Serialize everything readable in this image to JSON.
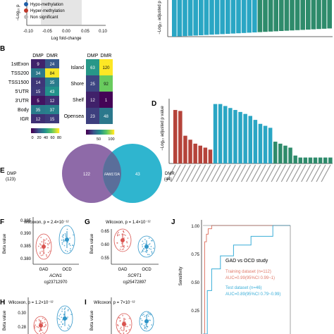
{
  "panel_labels": {
    "b": "B",
    "d": "D",
    "e": "E",
    "f": "F",
    "g": "G",
    "h": "H",
    "i": "I",
    "j": "J"
  },
  "legend_a": {
    "items": [
      {
        "label": "Hypo-methylation",
        "color": "#1f5fa8"
      },
      {
        "label": "Hyper-methylation",
        "color": "#c0392b"
      },
      {
        "label": "Non significant",
        "color": "#bbbbbb"
      }
    ]
  },
  "volcano": {
    "xlabel": "Log fold-change",
    "ylabel": "−Log₁₀ p",
    "xticks": [
      "-0.10",
      "-0.05",
      "0.00",
      "0.05",
      "0.10"
    ]
  },
  "panel_c": {
    "ylabel": "−Log₁₀ adjusted p"
  },
  "heat_b": {
    "columns": [
      "DMP",
      "DMR"
    ],
    "rows": [
      "1stExon",
      "TSS200",
      "TSS1500",
      "5'UTR",
      "3'UTR",
      "Body",
      "IGR"
    ],
    "values": [
      [
        9,
        24
      ],
      [
        34,
        84
      ],
      [
        14,
        35
      ],
      [
        15,
        43
      ],
      [
        5,
        12
      ],
      [
        35,
        37
      ],
      [
        12,
        15
      ]
    ],
    "colorbar_ticks": [
      "0",
      "20",
      "40",
      "60",
      "80"
    ]
  },
  "heat_b2": {
    "columns": [
      "DMP",
      "DMR"
    ],
    "rows": [
      "Island",
      "Shore",
      "Shelf",
      "Opensea"
    ],
    "values": [
      [
        63,
        120
      ],
      [
        25,
        92
      ],
      [
        12,
        1
      ],
      [
        23,
        48
      ]
    ],
    "colorbar_ticks": [
      "50",
      "100"
    ]
  },
  "panel_d": {
    "ylabel": "−Log₁₀ adjusted p value",
    "red_color": "#b5433a",
    "blue_color": "#2aa6c4",
    "green_color": "#2e8b6b"
  },
  "venn": {
    "left_label": "DMP",
    "left_count": "(123)",
    "right_label": "DMR",
    "right_count": "(44)",
    "left_only": "122",
    "shared": "FAM172A",
    "right_only": "43",
    "left_color": "#8e6aa8",
    "right_color": "#2fb5cf"
  },
  "panel_f": {
    "stat": "Wilcoxon, p = 2.4×10⁻¹²",
    "ylabel": "Beta value",
    "yticks": [
      "0.380",
      "0.385",
      "0.390",
      "0.395"
    ],
    "groups": [
      "GAD",
      "OCD"
    ],
    "gene": "ACIN1",
    "probe": "cg23712970"
  },
  "panel_g": {
    "stat": "Wilcoxon, p = 1.4×10⁻¹²",
    "ylabel": "Beta value",
    "yticks": [
      "0.55",
      "0.60",
      "0.65"
    ],
    "groups": [
      "GAD",
      "OCD"
    ],
    "gene": "SCRT1",
    "probe": "cg25472897"
  },
  "panel_h": {
    "stat": "Wilcoxon, p = 1.2×10⁻¹²",
    "ylabel": "Beta value",
    "yticks": [
      "0.28",
      "0.30"
    ]
  },
  "panel_i": {
    "stat": "Wilcoxon, p = 7×10⁻¹²",
    "ylabel": "Beta value"
  },
  "roc": {
    "ylabel": "Sensitivity",
    "yticks": [
      "1.00",
      "0.75",
      "0.50",
      "0.25"
    ],
    "study": "GAD vs OCD study",
    "train_label": "Training dataset (n=112)",
    "train_auc": "AUC=0.99(95%CI 0.99~1)",
    "test_label": "Test dataset (n=46)",
    "test_auc": "AUC=0.89(95%CI 0.79~0.99)",
    "train_color": "#e07a6a",
    "test_color": "#3aaed8"
  },
  "chart_data": [
    {
      "type": "heatmap",
      "title": "",
      "columns": [
        "DMP",
        "DMR"
      ],
      "rows": [
        "1stExon",
        "TSS200",
        "TSS1500",
        "5'UTR",
        "3'UTR",
        "Body",
        "IGR"
      ],
      "values": [
        [
          9,
          24
        ],
        [
          34,
          84
        ],
        [
          14,
          35
        ],
        [
          15,
          43
        ],
        [
          5,
          12
        ],
        [
          35,
          37
        ],
        [
          12,
          15
        ]
      ]
    },
    {
      "type": "heatmap",
      "title": "",
      "columns": [
        "DMP",
        "DMR"
      ],
      "rows": [
        "Island",
        "Shore",
        "Shelf",
        "Opensea"
      ],
      "values": [
        [
          63,
          120
        ],
        [
          25,
          92
        ],
        [
          12,
          1
        ],
        [
          23,
          48
        ]
      ]
    },
    {
      "type": "bar",
      "ylabel": "−Log₁₀ adjusted p value",
      "values": [
        27,
        26.5,
        14,
        12,
        10,
        9,
        8,
        7,
        30,
        30,
        29,
        28,
        27,
        26,
        25,
        24,
        22,
        20,
        19,
        18,
        11,
        10,
        9,
        8,
        4,
        3,
        3,
        3,
        3,
        3,
        3,
        3
      ],
      "groups": [
        "red",
        "red",
        "red",
        "red",
        "red",
        "red",
        "red",
        "red",
        "blue",
        "blue",
        "blue",
        "blue",
        "blue",
        "blue",
        "blue",
        "blue",
        "blue",
        "blue",
        "blue",
        "blue",
        "green",
        "green",
        "green",
        "green",
        "green",
        "green",
        "green",
        "green",
        "green",
        "green",
        "green",
        "green"
      ]
    },
    {
      "type": "scatter",
      "ylabel": "Beta value",
      "categories": [
        "GAD",
        "OCD"
      ],
      "means": [
        0.3835,
        0.3885
      ],
      "ylim": [
        0.377,
        0.397
      ]
    },
    {
      "type": "scatter",
      "ylabel": "Beta value",
      "categories": [
        "GAD",
        "OCD"
      ],
      "means": [
        0.615,
        0.585
      ],
      "ylim": [
        0.52,
        0.68
      ]
    },
    {
      "type": "line",
      "ylabel": "Sensitivity",
      "series": [
        {
          "name": "Training dataset (n=112)",
          "x": [
            0,
            0.02,
            0.04,
            0.06,
            0.1,
            0.4,
            1
          ],
          "y": [
            0,
            0.85,
            0.92,
            0.97,
            1,
            1,
            1
          ]
        },
        {
          "name": "Test dataset (n=46)",
          "x": [
            0,
            0.05,
            0.1,
            0.2,
            0.35,
            0.55,
            0.8,
            1
          ],
          "y": [
            0,
            0.4,
            0.6,
            0.72,
            0.82,
            0.9,
            1,
            1
          ]
        }
      ],
      "ylim": [
        0,
        1
      ]
    }
  ]
}
